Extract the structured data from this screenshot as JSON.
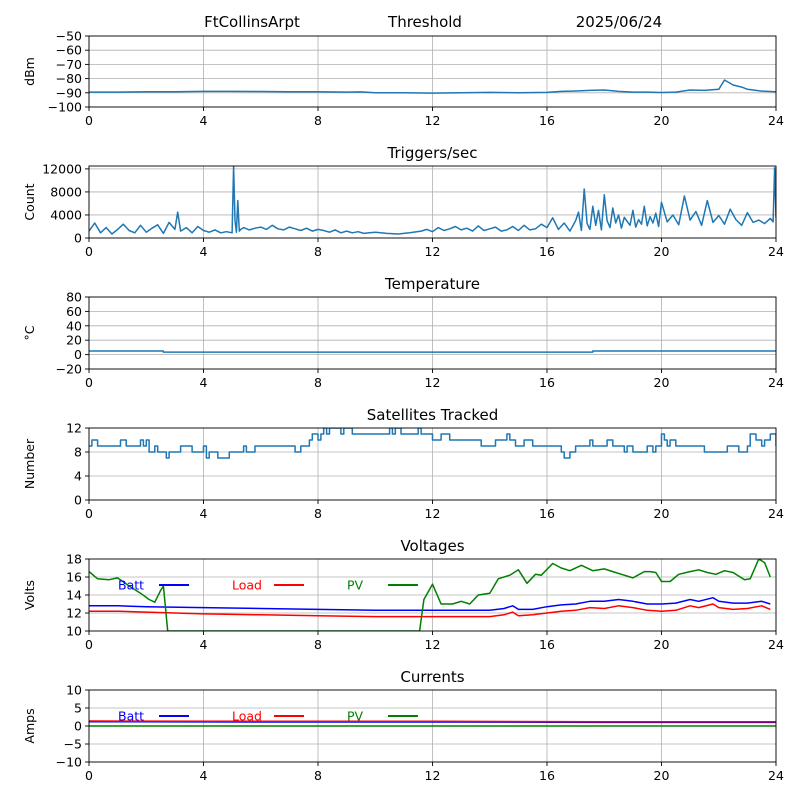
{
  "header": {
    "station": "FtCollinsArpt",
    "mode": "Threshold",
    "date": "2025/06/24"
  },
  "chart_data": [
    {
      "type": "line",
      "title": "",
      "xlabel": "",
      "ylabel": "dBm",
      "xlim": [
        0,
        24
      ],
      "ylim": [
        -100,
        -50
      ],
      "xticks": [
        0,
        4,
        8,
        12,
        16,
        20,
        24
      ],
      "yticks": [
        -100,
        -90,
        -80,
        -70,
        -60,
        -50
      ],
      "ytick_labels": [
        "−100",
        "−90",
        "−80",
        "−70",
        "−60",
        "−50"
      ],
      "grid": true,
      "series": [
        {
          "color": "#1f77b4",
          "x": [
            0,
            1,
            2,
            3,
            4,
            5,
            6,
            7,
            8,
            9,
            9.5,
            10,
            11,
            12,
            13,
            14,
            15,
            16,
            16.5,
            17,
            17.5,
            18,
            18.5,
            19,
            19.5,
            20,
            20.5,
            21,
            21.5,
            22,
            22.2,
            22.5,
            22.8,
            23,
            23.5,
            24
          ],
          "y": [
            -89.5,
            -89.5,
            -89.2,
            -89.3,
            -89.0,
            -89.0,
            -89.1,
            -89.2,
            -89.3,
            -89.5,
            -89.4,
            -89.9,
            -90.0,
            -90.2,
            -90.0,
            -89.7,
            -89.9,
            -89.7,
            -89.0,
            -88.7,
            -88.3,
            -88.0,
            -89.0,
            -89.5,
            -89.5,
            -89.8,
            -89.5,
            -88.0,
            -88.3,
            -87.5,
            -81.0,
            -84.5,
            -86.0,
            -87.5,
            -88.8,
            -89.3
          ]
        }
      ]
    },
    {
      "type": "line",
      "title": "Triggers/sec",
      "xlabel": "",
      "ylabel": "Count",
      "xlim": [
        0,
        24
      ],
      "ylim": [
        0,
        12500
      ],
      "xticks": [
        0,
        4,
        8,
        12,
        16,
        20,
        24
      ],
      "yticks": [
        0,
        4000,
        8000,
        12000
      ],
      "grid": true,
      "series": [
        {
          "color": "#1f77b4",
          "x": [
            0,
            0.2,
            0.4,
            0.6,
            0.8,
            1.0,
            1.2,
            1.4,
            1.6,
            1.8,
            2.0,
            2.2,
            2.4,
            2.6,
            2.8,
            3.0,
            3.1,
            3.2,
            3.4,
            3.6,
            3.8,
            4.0,
            4.2,
            4.4,
            4.6,
            4.8,
            5.0,
            5.05,
            5.1,
            5.15,
            5.2,
            5.25,
            5.3,
            5.4,
            5.6,
            5.8,
            6.0,
            6.2,
            6.4,
            6.6,
            6.8,
            7.0,
            7.2,
            7.4,
            7.6,
            7.8,
            8.0,
            8.2,
            8.4,
            8.6,
            8.8,
            9.0,
            9.2,
            9.4,
            9.6,
            9.8,
            10.0,
            10.4,
            10.8,
            11.2,
            11.6,
            11.8,
            12.0,
            12.2,
            12.4,
            12.6,
            12.8,
            13.0,
            13.2,
            13.4,
            13.6,
            13.8,
            14.0,
            14.2,
            14.4,
            14.6,
            14.8,
            15.0,
            15.2,
            15.4,
            15.6,
            15.8,
            16.0,
            16.2,
            16.4,
            16.6,
            16.8,
            17.0,
            17.1,
            17.2,
            17.3,
            17.4,
            17.5,
            17.6,
            17.7,
            17.8,
            17.9,
            18.0,
            18.1,
            18.2,
            18.3,
            18.4,
            18.5,
            18.6,
            18.7,
            18.8,
            18.9,
            19.0,
            19.1,
            19.2,
            19.3,
            19.4,
            19.5,
            19.6,
            19.7,
            19.8,
            19.9,
            20.0,
            20.2,
            20.4,
            20.6,
            20.8,
            21.0,
            21.2,
            21.4,
            21.6,
            21.8,
            22.0,
            22.2,
            22.4,
            22.6,
            22.8,
            23.0,
            23.2,
            23.4,
            23.6,
            23.8,
            23.9,
            23.95,
            24.0
          ],
          "y": [
            1200,
            2600,
            900,
            1800,
            700,
            1500,
            2400,
            1300,
            900,
            2200,
            1000,
            1700,
            2300,
            800,
            2700,
            1500,
            4500,
            1200,
            1800,
            900,
            2000,
            1300,
            1000,
            1400,
            900,
            1100,
            900,
            12500,
            3000,
            1000,
            6500,
            1200,
            1500,
            1800,
            1400,
            1700,
            1900,
            1500,
            2200,
            1600,
            1400,
            1900,
            1600,
            1300,
            1700,
            1200,
            1500,
            1300,
            1000,
            1400,
            900,
            1200,
            900,
            1100,
            800,
            900,
            1000,
            800,
            700,
            900,
            1200,
            1500,
            1100,
            1800,
            1300,
            1600,
            2000,
            1400,
            1700,
            1200,
            2100,
            1300,
            1600,
            1900,
            1200,
            1400,
            2000,
            1300,
            2200,
            1400,
            1600,
            2400,
            1800,
            3500,
            1500,
            2600,
            1200,
            3000,
            4500,
            1300,
            8500,
            2500,
            1500,
            5500,
            2200,
            4800,
            1400,
            7500,
            3000,
            1800,
            5200,
            2600,
            4000,
            1700,
            3600,
            2900,
            2200,
            4800,
            1900,
            3200,
            2400,
            5500,
            2100,
            3700,
            2600,
            4300,
            2000,
            6200,
            2800,
            4000,
            2300,
            7300,
            3100,
            4600,
            2200,
            6500,
            2700,
            3900,
            2400,
            5000,
            3200,
            2200,
            4400,
            2700,
            3100,
            2500,
            3400,
            2800,
            12200,
            3500
          ]
        }
      ]
    },
    {
      "type": "line",
      "title": "Temperature",
      "xlabel": "",
      "ylabel": "°C",
      "xlim": [
        0,
        24
      ],
      "ylim": [
        -20,
        80
      ],
      "xticks": [
        0,
        4,
        8,
        12,
        16,
        20,
        24
      ],
      "yticks": [
        -20,
        0,
        20,
        40,
        60,
        80
      ],
      "ytick_labels": [
        "−20",
        "0",
        "20",
        "40",
        "60",
        "80"
      ],
      "grid": true,
      "series": [
        {
          "color": "#1f77b4",
          "x": [
            0,
            2.6,
            2.6,
            17.6,
            17.6,
            24
          ],
          "y": [
            5,
            5,
            3.5,
            3.5,
            5,
            5
          ]
        }
      ]
    },
    {
      "type": "line",
      "title": "Satellites Tracked",
      "xlabel": "",
      "ylabel": "Number",
      "xlim": [
        0,
        24
      ],
      "ylim": [
        0,
        12
      ],
      "xticks": [
        0,
        4,
        8,
        12,
        16,
        20,
        24
      ],
      "yticks": [
        0,
        4,
        8,
        12
      ],
      "grid": true,
      "series": [
        {
          "color": "#1f77b4",
          "step": true,
          "x": [
            0,
            0.1,
            0.3,
            1.1,
            1.3,
            1.8,
            1.9,
            2.0,
            2.1,
            2.3,
            2.4,
            2.7,
            2.8,
            3.2,
            3.6,
            4.0,
            4.1,
            4.2,
            4.4,
            4.5,
            4.9,
            5.4,
            5.5,
            5.8,
            6.5,
            7.2,
            7.4,
            7.7,
            7.8,
            8.0,
            8.1,
            8.2,
            8.3,
            8.4,
            8.8,
            8.9,
            9.2,
            9.5,
            10.5,
            10.6,
            10.7,
            10.9,
            11.5,
            11.6,
            12.0,
            12.3,
            12.6,
            13.5,
            13.7,
            14.2,
            14.6,
            14.7,
            14.9,
            15.2,
            15.5,
            16.0,
            16.5,
            16.6,
            16.8,
            17.0,
            17.5,
            17.6,
            18.1,
            18.3,
            18.7,
            18.8,
            19.0,
            19.5,
            19.7,
            19.8,
            20.0,
            20.1,
            20.2,
            20.3,
            20.5,
            21.0,
            21.5,
            22.0,
            22.3,
            22.7,
            23.0,
            23.1,
            23.3,
            23.5,
            23.6,
            23.8,
            24.0
          ],
          "y": [
            9,
            10,
            9,
            10,
            9,
            10,
            9,
            10,
            8,
            9,
            8,
            7,
            8,
            9,
            8,
            9,
            7,
            8,
            8,
            7,
            8,
            9,
            8,
            9,
            9,
            8,
            9,
            10,
            11,
            10,
            11,
            12,
            11,
            12,
            11,
            12,
            11,
            11,
            12,
            11,
            12,
            11,
            12,
            11,
            10,
            11,
            10,
            10,
            9,
            10,
            11,
            10,
            9,
            10,
            9,
            9,
            8,
            7,
            8,
            9,
            10,
            9,
            10,
            9,
            8,
            9,
            8,
            9,
            8,
            9,
            11,
            10,
            9,
            10,
            9,
            9,
            8,
            8,
            9,
            8,
            9,
            11,
            10,
            9,
            10,
            11,
            9
          ]
        }
      ]
    },
    {
      "type": "line",
      "title": "Voltages",
      "xlabel": "",
      "ylabel": "Volts",
      "xlim": [
        0,
        24
      ],
      "ylim": [
        10,
        18
      ],
      "xticks": [
        0,
        4,
        8,
        12,
        16,
        20,
        24
      ],
      "yticks": [
        10,
        12,
        14,
        16,
        18
      ],
      "grid": true,
      "legend": "inline-top",
      "series": [
        {
          "name": "Batt",
          "color": "#0000ff",
          "x": [
            0,
            1,
            2,
            4,
            6,
            8,
            10,
            12,
            14,
            14.5,
            14.8,
            15.0,
            15.5,
            16.0,
            16.5,
            17.0,
            17.5,
            18.0,
            18.5,
            19.0,
            19.5,
            20.0,
            20.5,
            21.0,
            21.3,
            21.8,
            22.0,
            22.5,
            23.0,
            23.5,
            23.8
          ],
          "y": [
            12.8,
            12.8,
            12.7,
            12.6,
            12.5,
            12.4,
            12.3,
            12.3,
            12.3,
            12.5,
            12.8,
            12.4,
            12.4,
            12.7,
            12.9,
            13.0,
            13.3,
            13.3,
            13.5,
            13.3,
            13.0,
            13.0,
            13.1,
            13.5,
            13.3,
            13.7,
            13.3,
            13.1,
            13.1,
            13.3,
            13.0
          ]
        },
        {
          "name": "Load",
          "color": "#ff0000",
          "x": [
            0,
            1,
            2,
            4,
            6,
            8,
            10,
            12,
            14,
            14.5,
            14.8,
            15.0,
            15.5,
            16.0,
            16.5,
            17.0,
            17.5,
            18.0,
            18.5,
            19.0,
            19.5,
            20.0,
            20.5,
            21.0,
            21.3,
            21.8,
            22.0,
            22.5,
            23.0,
            23.5,
            23.8
          ],
          "y": [
            12.2,
            12.2,
            12.1,
            11.9,
            11.8,
            11.7,
            11.6,
            11.6,
            11.6,
            11.8,
            12.1,
            11.7,
            11.8,
            12.0,
            12.2,
            12.3,
            12.6,
            12.5,
            12.8,
            12.6,
            12.3,
            12.2,
            12.3,
            12.8,
            12.6,
            13.0,
            12.6,
            12.4,
            12.5,
            12.8,
            12.4
          ]
        },
        {
          "name": "PV",
          "color": "#008000",
          "x": [
            0,
            0.3,
            0.7,
            1.0,
            1.4,
            1.8,
            2.1,
            2.3,
            2.5,
            2.6,
            2.75,
            11.55,
            11.7,
            12.0,
            12.3,
            12.7,
            13.0,
            13.3,
            13.6,
            14.0,
            14.3,
            14.7,
            15.0,
            15.3,
            15.6,
            15.8,
            16.2,
            16.5,
            16.8,
            17.2,
            17.6,
            18.0,
            18.3,
            18.6,
            19.0,
            19.4,
            19.6,
            19.8,
            20.0,
            20.3,
            20.6,
            21.0,
            21.3,
            21.6,
            21.9,
            22.2,
            22.5,
            22.9,
            23.1,
            23.4,
            23.6,
            23.8
          ],
          "y": [
            16.6,
            15.8,
            15.7,
            15.9,
            15.0,
            14.2,
            13.5,
            13.2,
            14.5,
            15.0,
            10,
            10,
            13.5,
            15.2,
            13.0,
            13.0,
            13.3,
            13.0,
            14.0,
            14.2,
            15.8,
            16.2,
            16.8,
            15.3,
            16.3,
            16.2,
            17.5,
            17.0,
            16.7,
            17.3,
            16.7,
            16.9,
            16.6,
            16.3,
            15.9,
            16.6,
            16.6,
            16.5,
            15.5,
            15.5,
            16.3,
            16.6,
            16.8,
            16.5,
            16.3,
            16.7,
            16.5,
            15.7,
            15.8,
            18.0,
            17.6,
            16.0
          ]
        }
      ]
    },
    {
      "type": "line",
      "title": "Currents",
      "xlabel": "",
      "ylabel": "Amps",
      "xlim": [
        0,
        24
      ],
      "ylim": [
        -10,
        10
      ],
      "xticks": [
        0,
        4,
        8,
        12,
        16,
        20,
        24
      ],
      "yticks": [
        -10,
        -5,
        0,
        5,
        10
      ],
      "ytick_labels": [
        "−10",
        "−5",
        "0",
        "5",
        "10"
      ],
      "grid": true,
      "legend": "inline-top",
      "series": [
        {
          "name": "Batt",
          "color": "#0000ff",
          "x": [
            0,
            6,
            12,
            18,
            24
          ],
          "y": [
            1.2,
            1.1,
            1.1,
            1.0,
            1.0
          ]
        },
        {
          "name": "Load",
          "color": "#ff0000",
          "x": [
            0,
            6,
            12,
            18,
            24
          ],
          "y": [
            1.4,
            1.3,
            1.3,
            1.2,
            1.2
          ]
        },
        {
          "name": "PV",
          "color": "#008000",
          "x": [
            0,
            24
          ],
          "y": [
            0,
            0
          ]
        }
      ]
    }
  ]
}
